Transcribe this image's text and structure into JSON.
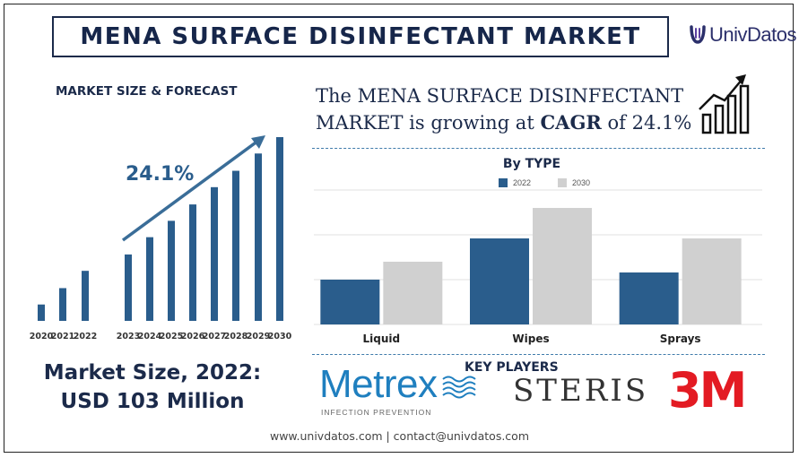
{
  "title": "MENA SURFACE DISINFECTANT MARKET",
  "logo": {
    "text": "UnivDatos",
    "icon": "univdatos-logo-icon"
  },
  "left_panel": {
    "heading": "MARKET SIZE & FORECAST",
    "growth_label": "24.1%",
    "market_size_line1": "Market Size, 2022:",
    "market_size_line2": "USD 103 Million"
  },
  "headline": {
    "part1": "The MENA SURFACE DISINFECTANT MARKET is growing at ",
    "bold": "CAGR",
    "part2": " of 24.1%",
    "icon": "growth-chart-icon"
  },
  "chart_data": [
    {
      "type": "bar",
      "title": "MARKET SIZE & FORECAST",
      "categories": [
        "2020",
        "2021",
        "2022",
        "2023",
        "2024",
        "2025",
        "2026",
        "2027",
        "2028",
        "2029",
        "2030"
      ],
      "values": [
        18,
        36,
        55,
        73,
        92,
        110,
        128,
        147,
        165,
        184,
        202
      ],
      "color": "#2a5d8c",
      "annotation": "24.1%"
    },
    {
      "type": "bar",
      "title": "By TYPE",
      "categories": [
        "Liquid",
        "Wipes",
        "Sprays"
      ],
      "series": [
        {
          "name": "2022",
          "values": [
            25,
            48,
            29
          ],
          "color": "#2a5d8c"
        },
        {
          "name": "2030",
          "values": [
            35,
            65,
            48
          ],
          "color": "#d0d0d0"
        }
      ],
      "ylim": [
        0,
        75
      ],
      "grid": true,
      "legend": "top-center"
    }
  ],
  "key_players": {
    "heading": "KEY PLAYERS",
    "players": [
      {
        "name": "Metrex",
        "tagline": "INFECTION PREVENTION",
        "color": "#1f7fbf"
      },
      {
        "name": "STERIS",
        "color": "#333333"
      },
      {
        "name": "3M",
        "color": "#e31b23"
      }
    ]
  },
  "footer": "www.univdatos.com | contact@univdatos.com"
}
